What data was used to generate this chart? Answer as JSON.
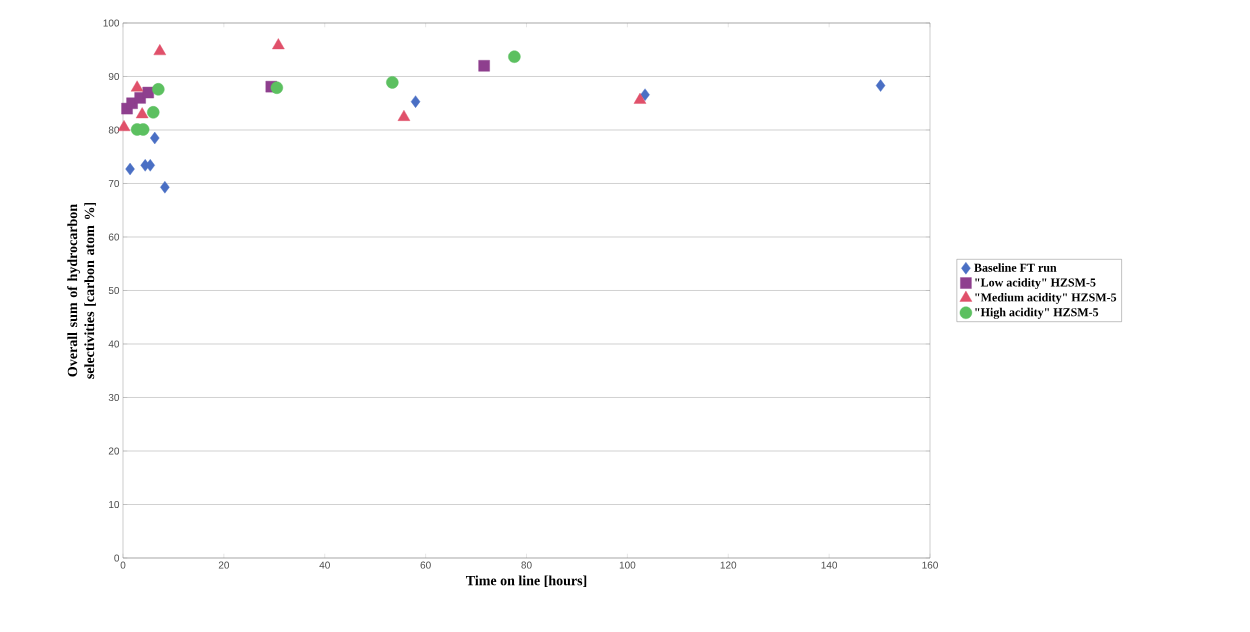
{
  "chart_data": {
    "type": "scatter",
    "xlabel": "Time on line [hours]",
    "ylabel": "Overall sum of hydrocarbon selectivities [carbon atom %]",
    "xlim": [
      0,
      160
    ],
    "ylim": [
      0,
      100
    ],
    "xticks": [
      0,
      20,
      40,
      60,
      80,
      100,
      120,
      140,
      160
    ],
    "yticks": [
      0,
      10,
      20,
      30,
      40,
      50,
      60,
      70,
      80,
      90,
      100
    ],
    "grid": "y",
    "legend": "right",
    "series": [
      {
        "name": "Baseline FT run",
        "color": "#4a6fc4",
        "marker": "diamond",
        "x": [
          1.4,
          4.4,
          5.4,
          6.3,
          8.3,
          58,
          103.5,
          150.2
        ],
        "values": [
          72.7,
          73.4,
          73.4,
          78.5,
          69.3,
          85.3,
          86.6,
          88.3
        ]
      },
      {
        "name": "\"Low acidity\" HZSM-5",
        "color": "#8e3f8e",
        "marker": "square",
        "x": [
          0.8,
          1.8,
          3.4,
          5,
          29.4,
          71.6
        ],
        "values": [
          84,
          85,
          86,
          87,
          88.1,
          92
        ]
      },
      {
        "name": "\"Medium acidity\" HZSM-5",
        "color": "#e0506a",
        "marker": "triangle",
        "x": [
          0.2,
          2.8,
          3.8,
          7.3,
          30.8,
          55.7,
          102.5
        ],
        "values": [
          80.5,
          87.9,
          82.9,
          94.7,
          95.8,
          82.4,
          85.6
        ]
      },
      {
        "name": "\"High acidity\" HZSM-5",
        "color": "#5cc060",
        "marker": "circle",
        "x": [
          2.8,
          4,
          6,
          7,
          30.5,
          53.4,
          77.6
        ],
        "values": [
          80.1,
          80.1,
          83.3,
          87.6,
          87.9,
          88.9,
          93.7
        ]
      }
    ]
  }
}
